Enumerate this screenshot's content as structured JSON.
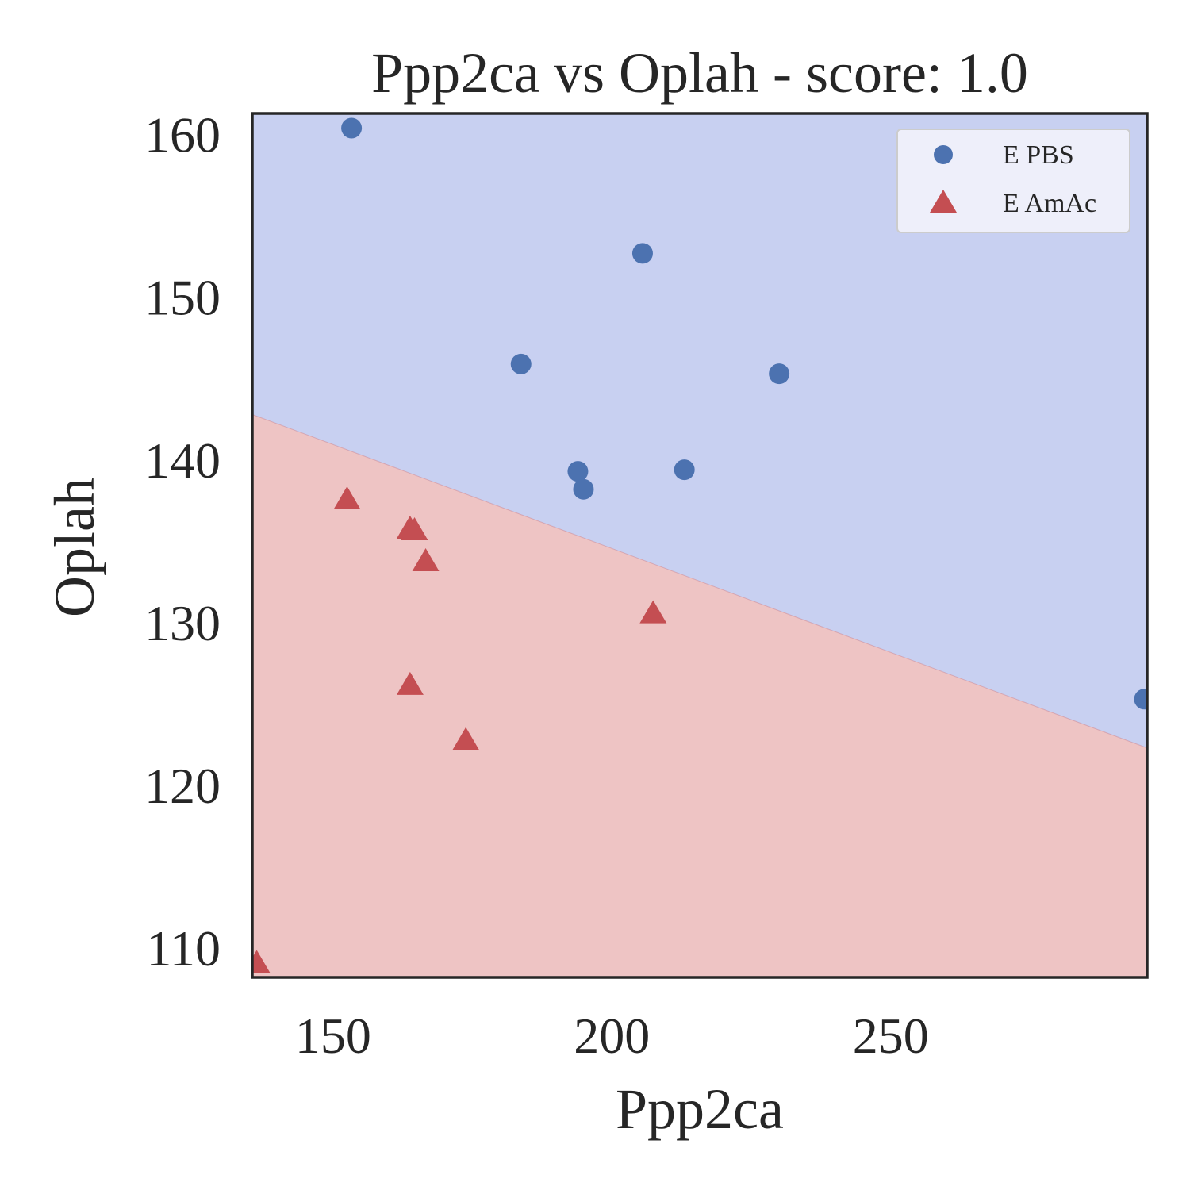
{
  "chart_data": {
    "type": "scatter",
    "title": "Ppp2ca vs Oplah - score: 1.0",
    "xlabel": "Ppp2ca",
    "ylabel": "Oplah",
    "xlim": [
      135.5,
      296.0
    ],
    "ylim": [
      108.2,
      161.3
    ],
    "xticks": [
      150,
      200,
      250
    ],
    "yticks": [
      110,
      120,
      130,
      140,
      150,
      160
    ],
    "grid": false,
    "legend_position": "top-right",
    "decision_boundary": {
      "x": [
        135.5,
        296.0
      ],
      "y": [
        142.8,
        122.3
      ]
    },
    "regions": [
      {
        "name": "E PBS",
        "side": "above",
        "color": "#c8d0f1"
      },
      {
        "name": "E AmAc",
        "side": "below",
        "color": "#eec4c4"
      }
    ],
    "series": [
      {
        "name": "E PBS",
        "marker": "circle",
        "color": "#4c72b0",
        "points": [
          [
            153.3,
            160.4
          ],
          [
            205.5,
            152.7
          ],
          [
            183.7,
            145.9
          ],
          [
            230.0,
            145.3
          ],
          [
            193.9,
            139.3
          ],
          [
            194.9,
            138.2
          ],
          [
            213.0,
            139.4
          ],
          [
            295.5,
            125.3
          ]
        ]
      },
      {
        "name": "E AmAc",
        "marker": "triangle",
        "color": "#c44e52",
        "points": [
          [
            152.5,
            137.6
          ],
          [
            163.8,
            135.8
          ],
          [
            164.6,
            135.7
          ],
          [
            166.6,
            133.8
          ],
          [
            207.4,
            130.6
          ],
          [
            163.8,
            126.2
          ],
          [
            173.8,
            122.8
          ],
          [
            136.3,
            109.1
          ]
        ]
      }
    ]
  }
}
